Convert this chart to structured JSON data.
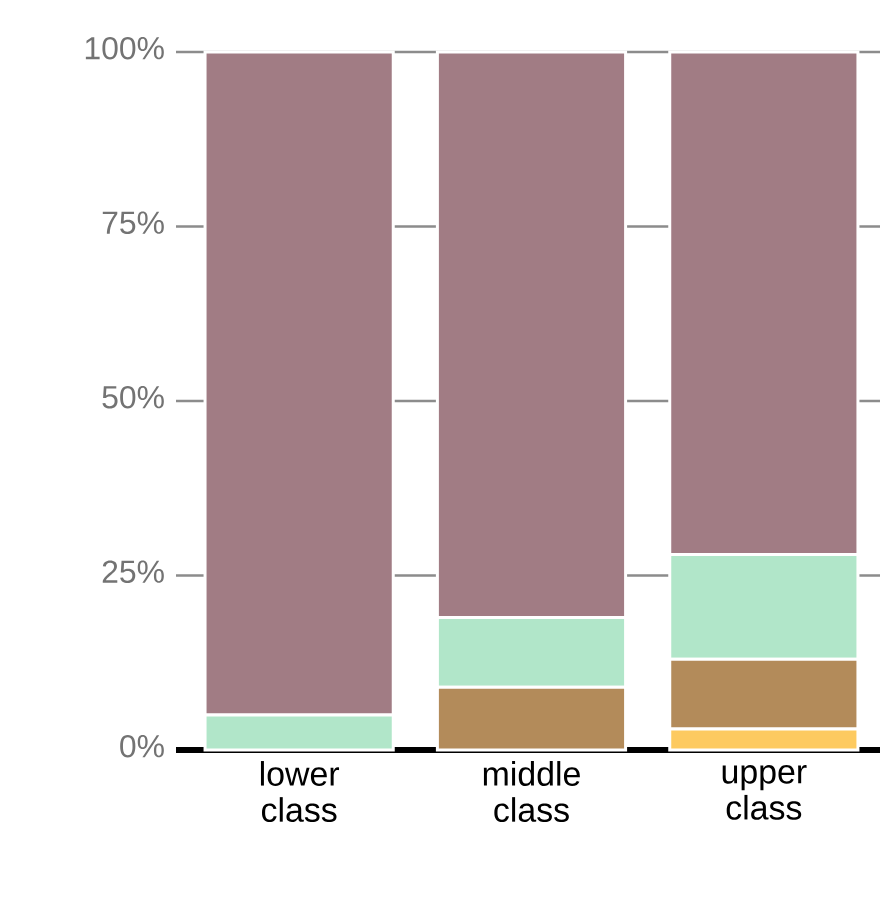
{
  "chart_data": {
    "type": "bar",
    "stacked": true,
    "categories": [
      "lower class",
      "middle class",
      "upper class"
    ],
    "series": [
      {
        "color": "#fdca60",
        "values": [
          0,
          0,
          3
        ]
      },
      {
        "color": "#b38b5a",
        "values": [
          0,
          9,
          10
        ]
      },
      {
        "color": "#b1e6c9",
        "values": [
          5,
          10,
          15
        ]
      },
      {
        "color": "#a17c84",
        "values": [
          95,
          81,
          72
        ]
      }
    ],
    "ylim": [
      0,
      100
    ],
    "yticks": [
      {
        "value": 0,
        "label": "0%"
      },
      {
        "value": 25,
        "label": "25%"
      },
      {
        "value": 50,
        "label": "50%"
      },
      {
        "value": 75,
        "label": "75%"
      },
      {
        "value": 100,
        "label": "100%"
      }
    ],
    "grid": "y"
  }
}
